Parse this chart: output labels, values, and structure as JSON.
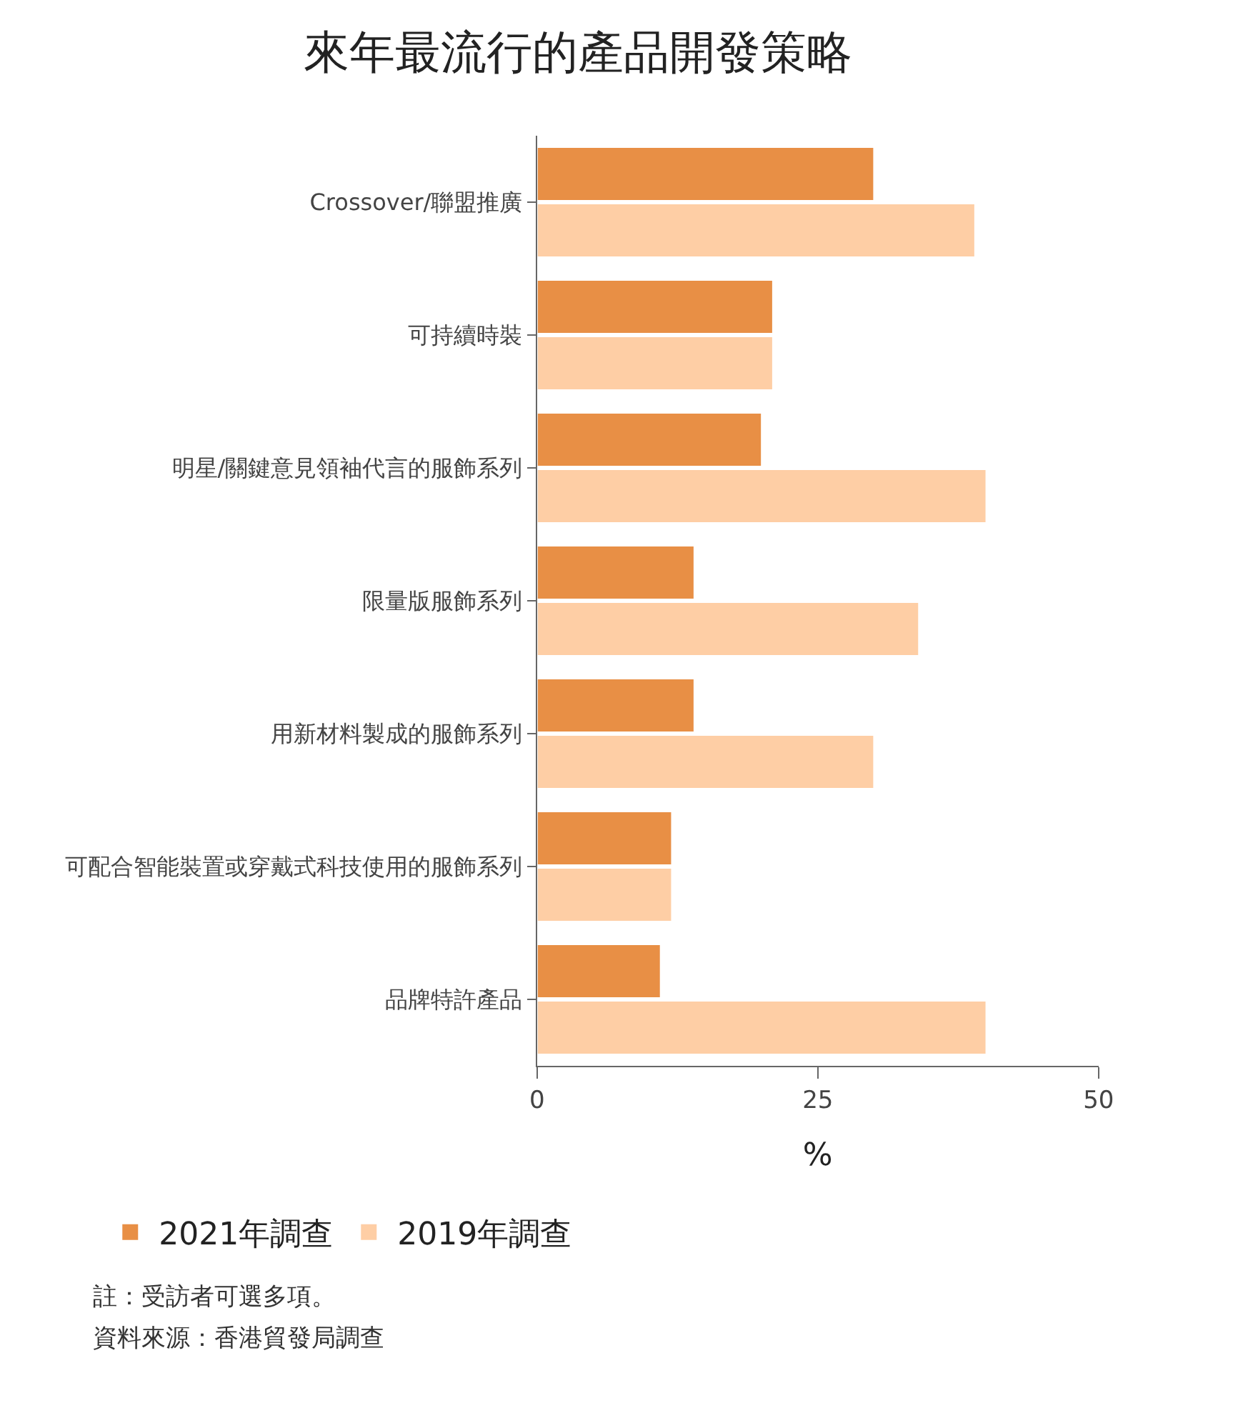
{
  "chart_data": {
    "type": "bar",
    "orientation": "horizontal",
    "title": "來年最流行的產品開發策略",
    "xlabel": "%",
    "categories": [
      "Crossover/聯盟推廣",
      "可持續時裝",
      "明星/關鍵意見領袖代言的服飾系列",
      "限量版服飾系列",
      "用新材料製成的服飾系列",
      "可配合智能裝置或穿戴式科技使用的服飾系列",
      "品牌特許產品"
    ],
    "series": [
      {
        "name": "2021年調查",
        "color": "#e88f45",
        "values": [
          30,
          21,
          20,
          14,
          14,
          12,
          11
        ]
      },
      {
        "name": "2019年調查",
        "color": "#fecea5",
        "values": [
          39,
          21,
          40,
          34,
          30,
          12,
          40
        ]
      }
    ],
    "xlim": [
      0,
      50
    ],
    "xticks": [
      0,
      25,
      50
    ],
    "legend": "bottom",
    "annotations": [
      "註：受訪者可選多項。",
      "資料來源：香港貿發局調查"
    ]
  }
}
